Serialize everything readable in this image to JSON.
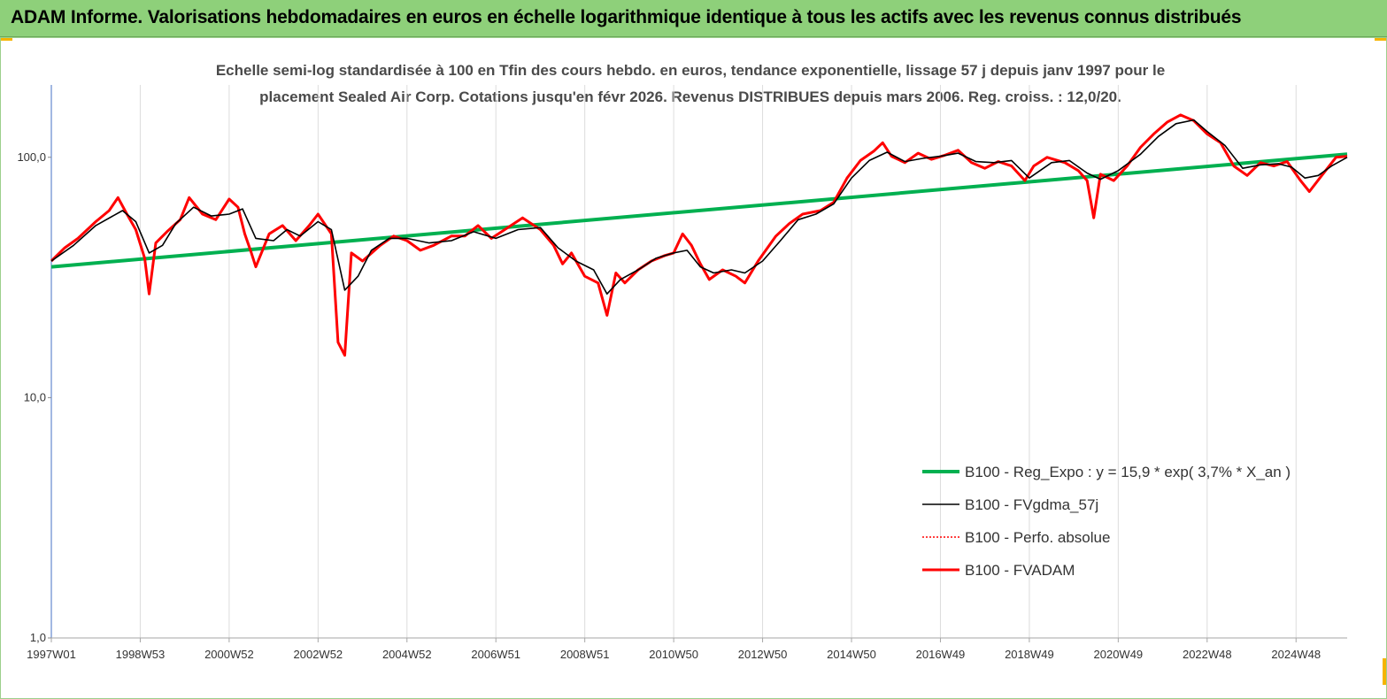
{
  "banner": {
    "title": "ADAM Informe. Valorisations hebdomadaires en euros en échelle logarithmique identique à tous les actifs avec les revenus connus distribués",
    "background": "#8ed07a"
  },
  "chart_data": {
    "type": "line",
    "title_line1": "Echelle semi-log standardisée à 100 en Tfin des cours hebdo. en euros, tendance exponentielle, lissage 57 j depuis janv 1997 pour le",
    "title_line2": "placement Sealed Air Corp. Cotations jusqu'en févr 2026. Revenus DISTRIBUES depuis mars 2006. Reg. croiss. : 12,0/20.",
    "y_scale": "log",
    "ylim": [
      1,
      200
    ],
    "y_ticks": [
      {
        "value": 1,
        "label": "1,0"
      },
      {
        "value": 10,
        "label": "10,0"
      },
      {
        "value": 100,
        "label": "100,0"
      }
    ],
    "xlim": [
      1997.0,
      2026.15
    ],
    "x_ticks": [
      {
        "x": 1997.0,
        "label": "1997W01"
      },
      {
        "x": 1999.0,
        "label": "1998W53"
      },
      {
        "x": 2001.0,
        "label": "2000W52"
      },
      {
        "x": 2003.0,
        "label": "2002W52"
      },
      {
        "x": 2005.0,
        "label": "2004W52"
      },
      {
        "x": 2007.0,
        "label": "2006W51"
      },
      {
        "x": 2009.0,
        "label": "2008W51"
      },
      {
        "x": 2011.0,
        "label": "2010W50"
      },
      {
        "x": 2013.0,
        "label": "2012W50"
      },
      {
        "x": 2015.0,
        "label": "2014W50"
      },
      {
        "x": 2017.0,
        "label": "2016W49"
      },
      {
        "x": 2019.0,
        "label": "2018W49"
      },
      {
        "x": 2021.0,
        "label": "2020W49"
      },
      {
        "x": 2023.0,
        "label": "2022W48"
      },
      {
        "x": 2025.0,
        "label": "2024W48"
      }
    ],
    "grid": "vertical",
    "legend_position": "bottom-right",
    "series": [
      {
        "name": "B100 - Reg_Expo : y = 15,9 * exp( 3,7% *  X_an )",
        "color": "#00b050",
        "style": "solid",
        "points": [
          [
            1997.0,
            35
          ],
          [
            2026.15,
            103
          ]
        ]
      },
      {
        "name": "B100 - FVgdma_57j",
        "color": "#000000",
        "style": "solid",
        "points": [
          [
            1997.0,
            37
          ],
          [
            1997.5,
            43
          ],
          [
            1998.0,
            52
          ],
          [
            1998.6,
            60
          ],
          [
            1998.9,
            54
          ],
          [
            1999.2,
            40
          ],
          [
            1999.5,
            43
          ],
          [
            1999.8,
            53
          ],
          [
            2000.2,
            62
          ],
          [
            2000.6,
            57
          ],
          [
            2001.0,
            58
          ],
          [
            2001.3,
            61
          ],
          [
            2001.6,
            46
          ],
          [
            2002.0,
            45
          ],
          [
            2002.3,
            50
          ],
          [
            2002.6,
            47
          ],
          [
            2003.0,
            54
          ],
          [
            2003.3,
            50
          ],
          [
            2003.6,
            28
          ],
          [
            2003.9,
            32
          ],
          [
            2004.2,
            41
          ],
          [
            2004.6,
            46
          ],
          [
            2005.0,
            46
          ],
          [
            2005.5,
            44
          ],
          [
            2006.0,
            45
          ],
          [
            2006.5,
            49
          ],
          [
            2007.0,
            46
          ],
          [
            2007.5,
            50
          ],
          [
            2008.0,
            51
          ],
          [
            2008.4,
            42
          ],
          [
            2008.8,
            37
          ],
          [
            2009.2,
            34
          ],
          [
            2009.5,
            27
          ],
          [
            2009.8,
            31
          ],
          [
            2010.2,
            34
          ],
          [
            2010.6,
            38
          ],
          [
            2011.0,
            40
          ],
          [
            2011.3,
            41
          ],
          [
            2011.6,
            35
          ],
          [
            2011.9,
            33
          ],
          [
            2012.3,
            34
          ],
          [
            2012.6,
            33
          ],
          [
            2013.0,
            37
          ],
          [
            2013.4,
            45
          ],
          [
            2013.8,
            55
          ],
          [
            2014.2,
            58
          ],
          [
            2014.6,
            64
          ],
          [
            2015.0,
            82
          ],
          [
            2015.4,
            97
          ],
          [
            2015.8,
            105
          ],
          [
            2016.2,
            96
          ],
          [
            2016.6,
            99
          ],
          [
            2017.0,
            101
          ],
          [
            2017.4,
            104
          ],
          [
            2017.8,
            96
          ],
          [
            2018.2,
            95
          ],
          [
            2018.6,
            97
          ],
          [
            2019.0,
            82
          ],
          [
            2019.5,
            95
          ],
          [
            2019.9,
            97
          ],
          [
            2020.3,
            86
          ],
          [
            2020.6,
            81
          ],
          [
            2021.0,
            88
          ],
          [
            2021.5,
            103
          ],
          [
            2021.9,
            122
          ],
          [
            2022.3,
            138
          ],
          [
            2022.7,
            143
          ],
          [
            2023.0,
            128
          ],
          [
            2023.4,
            112
          ],
          [
            2023.8,
            90
          ],
          [
            2024.2,
            93
          ],
          [
            2024.6,
            94
          ],
          [
            2024.9,
            91
          ],
          [
            2025.2,
            82
          ],
          [
            2025.5,
            84
          ],
          [
            2025.8,
            92
          ],
          [
            2026.15,
            100
          ]
        ]
      },
      {
        "name": "B100 - Perfo. absolue",
        "color": "#ff0000",
        "style": "dotted",
        "points": []
      },
      {
        "name": "B100 - FVADAM",
        "color": "#ff0000",
        "style": "solid",
        "points": [
          [
            1997.0,
            37
          ],
          [
            1997.3,
            42
          ],
          [
            1997.6,
            46
          ],
          [
            1998.0,
            54
          ],
          [
            1998.3,
            60
          ],
          [
            1998.5,
            68
          ],
          [
            1998.7,
            58
          ],
          [
            1998.9,
            50
          ],
          [
            1999.1,
            38
          ],
          [
            1999.2,
            27
          ],
          [
            1999.35,
            44
          ],
          [
            1999.6,
            49
          ],
          [
            1999.9,
            55
          ],
          [
            2000.1,
            68
          ],
          [
            2000.4,
            58
          ],
          [
            2000.7,
            55
          ],
          [
            2001.0,
            67
          ],
          [
            2001.2,
            62
          ],
          [
            2001.35,
            48
          ],
          [
            2001.5,
            40
          ],
          [
            2001.6,
            35
          ],
          [
            2001.9,
            48
          ],
          [
            2002.2,
            52
          ],
          [
            2002.5,
            45
          ],
          [
            2002.8,
            52
          ],
          [
            2003.0,
            58
          ],
          [
            2003.3,
            48
          ],
          [
            2003.45,
            17
          ],
          [
            2003.6,
            15
          ],
          [
            2003.75,
            40
          ],
          [
            2004.0,
            37
          ],
          [
            2004.4,
            43
          ],
          [
            2004.7,
            47
          ],
          [
            2005.0,
            45
          ],
          [
            2005.3,
            41
          ],
          [
            2005.6,
            43
          ],
          [
            2006.0,
            47
          ],
          [
            2006.3,
            47
          ],
          [
            2006.6,
            52
          ],
          [
            2006.9,
            46
          ],
          [
            2007.2,
            50
          ],
          [
            2007.6,
            56
          ],
          [
            2008.0,
            50
          ],
          [
            2008.3,
            43
          ],
          [
            2008.5,
            36
          ],
          [
            2008.7,
            40
          ],
          [
            2009.0,
            32
          ],
          [
            2009.3,
            30
          ],
          [
            2009.5,
            22
          ],
          [
            2009.7,
            33
          ],
          [
            2009.9,
            30
          ],
          [
            2010.2,
            34
          ],
          [
            2010.5,
            37
          ],
          [
            2010.8,
            39
          ],
          [
            2011.0,
            40
          ],
          [
            2011.2,
            48
          ],
          [
            2011.4,
            43
          ],
          [
            2011.6,
            36
          ],
          [
            2011.8,
            31
          ],
          [
            2012.1,
            34
          ],
          [
            2012.4,
            32
          ],
          [
            2012.6,
            30
          ],
          [
            2012.9,
            37
          ],
          [
            2013.3,
            47
          ],
          [
            2013.6,
            53
          ],
          [
            2013.9,
            58
          ],
          [
            2014.3,
            60
          ],
          [
            2014.6,
            65
          ],
          [
            2014.9,
            82
          ],
          [
            2015.2,
            97
          ],
          [
            2015.5,
            106
          ],
          [
            2015.7,
            115
          ],
          [
            2015.9,
            101
          ],
          [
            2016.2,
            95
          ],
          [
            2016.5,
            104
          ],
          [
            2016.8,
            98
          ],
          [
            2017.1,
            102
          ],
          [
            2017.4,
            107
          ],
          [
            2017.7,
            95
          ],
          [
            2018.0,
            90
          ],
          [
            2018.3,
            96
          ],
          [
            2018.6,
            92
          ],
          [
            2018.9,
            80
          ],
          [
            2019.1,
            92
          ],
          [
            2019.4,
            100
          ],
          [
            2019.8,
            95
          ],
          [
            2020.1,
            88
          ],
          [
            2020.3,
            80
          ],
          [
            2020.45,
            56
          ],
          [
            2020.6,
            85
          ],
          [
            2020.9,
            80
          ],
          [
            2021.2,
            92
          ],
          [
            2021.5,
            110
          ],
          [
            2021.8,
            125
          ],
          [
            2022.1,
            140
          ],
          [
            2022.4,
            150
          ],
          [
            2022.7,
            142
          ],
          [
            2023.0,
            125
          ],
          [
            2023.3,
            115
          ],
          [
            2023.6,
            92
          ],
          [
            2023.9,
            84
          ],
          [
            2024.2,
            95
          ],
          [
            2024.5,
            92
          ],
          [
            2024.8,
            96
          ],
          [
            2025.1,
            80
          ],
          [
            2025.3,
            72
          ],
          [
            2025.6,
            85
          ],
          [
            2025.9,
            100
          ],
          [
            2026.15,
            101
          ]
        ]
      }
    ]
  }
}
